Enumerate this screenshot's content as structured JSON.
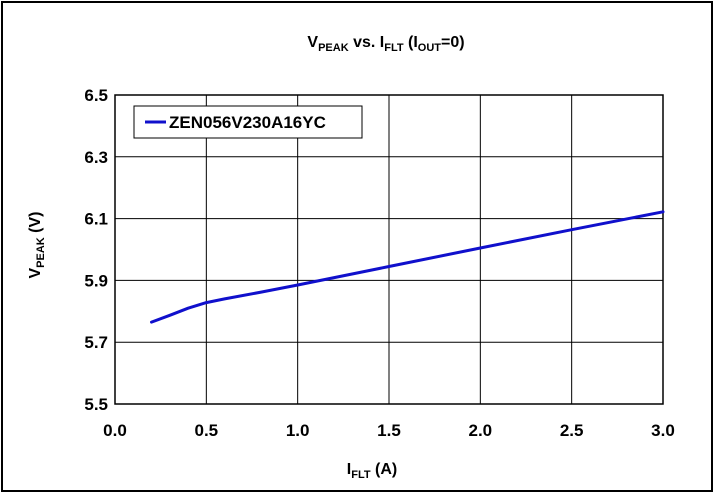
{
  "chart_data": {
    "type": "line",
    "title": {
      "main": "V",
      "main_sub": "PEAK",
      "vs": " vs. I",
      "vs_sub": "FLT",
      "open": " (I",
      "open_sub": "OUT",
      "close": "=0)"
    },
    "xlabel": {
      "main": "I",
      "sub": "FLT",
      "unit": " (A)"
    },
    "ylabel": {
      "main": "V",
      "sub": "PEAK",
      "unit": " (V)"
    },
    "xlim": [
      0.0,
      3.0
    ],
    "ylim": [
      5.5,
      6.5
    ],
    "xticks": [
      "0.0",
      "0.5",
      "1.0",
      "1.5",
      "2.0",
      "2.5",
      "3.0"
    ],
    "yticks": [
      "5.5",
      "5.7",
      "5.9",
      "6.1",
      "6.3",
      "6.5"
    ],
    "grid": true,
    "legend_position": "top-left",
    "series": [
      {
        "name": "ZEN056V230A16YC",
        "color": "#1010cc",
        "x": [
          0.2,
          0.3,
          0.4,
          0.5,
          0.6,
          0.8,
          1.0,
          1.2,
          1.5,
          2.0,
          2.5,
          3.0
        ],
        "y": [
          5.765,
          5.787,
          5.81,
          5.828,
          5.84,
          5.862,
          5.885,
          5.909,
          5.945,
          6.005,
          6.064,
          6.122
        ]
      }
    ]
  }
}
